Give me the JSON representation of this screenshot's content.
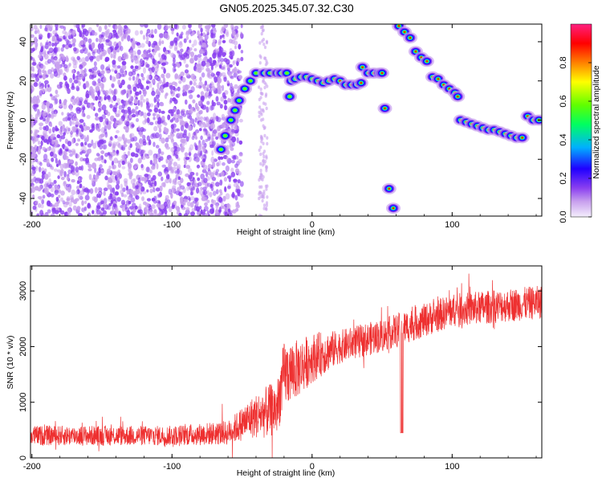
{
  "title": "GN05.2025.345.07.32.C30",
  "chart_data": [
    {
      "type": "heatmap",
      "title": "GN05.2025.345.07.32.C30",
      "xlabel": "Height of straight line (km)",
      "ylabel": "Frequency (Hz)",
      "xlim": [
        -201,
        164
      ],
      "ylim": [
        -49,
        49
      ],
      "xticks": [
        -200,
        -100,
        0,
        100
      ],
      "yticks": [
        40,
        20,
        0,
        -20,
        -40
      ],
      "colorbar": {
        "label": "Normalized spectral amplitude",
        "range": [
          0,
          1
        ],
        "ticks": [
          0.0,
          0.2,
          0.4,
          0.6,
          0.8
        ],
        "colormap": [
          "#f4eefc",
          "#c8a0ee",
          "#8a3ff0",
          "#2000ff",
          "#00b0ff",
          "#00ff60",
          "#60ff00",
          "#ffff00",
          "#ff8000",
          "#ff0000",
          "#ff2080"
        ]
      },
      "noise_region": {
        "x_range": [
          -201,
          -55
        ],
        "y_range": [
          -49,
          49
        ],
        "amplitude": [
          0.05,
          0.25
        ]
      },
      "signal_track": {
        "amplitude_peak": 0.9,
        "points": [
          [
            -65,
            -15
          ],
          [
            -62,
            -8
          ],
          [
            -58,
            0
          ],
          [
            -55,
            5
          ],
          [
            -52,
            10
          ],
          [
            -48,
            16
          ],
          [
            -44,
            20
          ],
          [
            -40,
            24
          ],
          [
            -34,
            24
          ],
          [
            -30,
            24
          ],
          [
            -25,
            24
          ],
          [
            -22,
            24
          ],
          [
            -18,
            24
          ],
          [
            -16,
            12
          ],
          [
            -15,
            20
          ],
          [
            -12,
            21
          ],
          [
            -8,
            22
          ],
          [
            -4,
            22
          ],
          [
            0,
            21
          ],
          [
            4,
            20
          ],
          [
            8,
            19
          ],
          [
            12,
            20
          ],
          [
            16,
            21
          ],
          [
            20,
            20
          ],
          [
            24,
            18
          ],
          [
            28,
            18
          ],
          [
            32,
            18
          ],
          [
            35,
            19
          ],
          [
            36,
            27
          ],
          [
            40,
            24
          ],
          [
            44,
            24
          ],
          [
            48,
            24
          ],
          [
            50,
            24
          ],
          [
            52,
            6
          ],
          [
            55,
            -35
          ],
          [
            58,
            -45
          ],
          [
            62,
            48
          ],
          [
            66,
            45
          ],
          [
            70,
            42
          ],
          [
            74,
            35
          ],
          [
            78,
            32
          ],
          [
            82,
            30
          ],
          [
            86,
            22
          ],
          [
            90,
            21
          ],
          [
            94,
            18
          ],
          [
            98,
            16
          ],
          [
            102,
            14
          ],
          [
            104,
            12
          ],
          [
            106,
            0
          ],
          [
            110,
            -1
          ],
          [
            114,
            -2
          ],
          [
            118,
            -3
          ],
          [
            122,
            -4
          ],
          [
            126,
            -5
          ],
          [
            130,
            -5
          ],
          [
            134,
            -6
          ],
          [
            138,
            -7
          ],
          [
            142,
            -8
          ],
          [
            146,
            -9
          ],
          [
            150,
            -9
          ],
          [
            154,
            2
          ],
          [
            158,
            0
          ],
          [
            162,
            0
          ]
        ]
      }
    },
    {
      "type": "line",
      "xlabel": "Height of straight line (km)",
      "ylabel": "SNR (10 * v/v)",
      "xlim": [
        -201,
        164
      ],
      "ylim": [
        0,
        3450
      ],
      "xticks": [
        -200,
        -100,
        0,
        100
      ],
      "yticks": [
        0,
        1000,
        2000,
        3000
      ],
      "color": "#ee3030",
      "series": [
        {
          "x": [
            -200,
            -150,
            -100,
            -60,
            -45,
            -35,
            -25,
            -20,
            -10,
            0,
            20,
            50,
            100,
            164
          ],
          "mean": [
            400,
            400,
            400,
            450,
            700,
            800,
            900,
            1500,
            1600,
            1800,
            2000,
            2200,
            2650,
            2800
          ],
          "spread": [
            180,
            180,
            180,
            220,
            350,
            450,
            500,
            600,
            520,
            450,
            300,
            300,
            300,
            300
          ]
        }
      ]
    }
  ]
}
